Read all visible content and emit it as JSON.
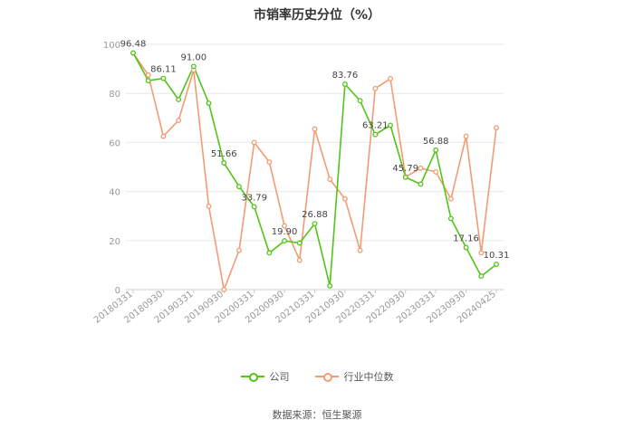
{
  "chart_data": {
    "type": "line",
    "title": "市销率历史分位（%）",
    "ylim": [
      0,
      100
    ],
    "yticks": [
      0,
      20,
      40,
      60,
      80,
      100
    ],
    "grid": true,
    "legend_position": "bottom",
    "x": [
      "20180331",
      "20180630",
      "20180930",
      "20181231",
      "20190331",
      "20190630",
      "20190930",
      "20191231",
      "20200331",
      "20200630",
      "20200930",
      "20201231",
      "20210331",
      "20210630",
      "20210930",
      "20211231",
      "20220331",
      "20220630",
      "20220930",
      "20221231",
      "20230331",
      "20230630",
      "20230930",
      "20231231",
      "20240425"
    ],
    "xtick_labels": [
      "20180331",
      "20180930",
      "20190331",
      "20190930",
      "20200331",
      "20200930",
      "20210331",
      "20210930",
      "20220331",
      "20220930",
      "20230331",
      "20230930",
      "20240425"
    ],
    "series": [
      {
        "name": "公司",
        "color": "#52c41a",
        "values": [
          96.48,
          85.2,
          86.11,
          77.5,
          91.0,
          76.0,
          51.66,
          42.0,
          33.79,
          15.0,
          19.9,
          19.0,
          26.88,
          1.5,
          83.76,
          77.0,
          63.21,
          67.0,
          45.79,
          43.0,
          56.88,
          29.0,
          17.16,
          5.5,
          10.31
        ],
        "labels": {
          "0": "96.48",
          "2": "86.11",
          "4": "91.00",
          "6": "51.66",
          "8": "33.79",
          "10": "19.90",
          "12": "26.88",
          "14": "83.76",
          "16": "63.21",
          "18": "45.79",
          "20": "56.88",
          "22": "17.16",
          "24": "10.31"
        }
      },
      {
        "name": "行业中位数",
        "color": "#f39c73",
        "values": [
          96.48,
          87.5,
          62.5,
          69.0,
          89.5,
          34.0,
          0.0,
          16.0,
          60.0,
          52.0,
          26.0,
          12.0,
          65.5,
          45.0,
          37.0,
          16.0,
          82.0,
          86.0,
          46.0,
          49.5,
          48.0,
          37.0,
          62.5,
          15.0,
          66.0
        ]
      }
    ]
  },
  "source": "数据来源：恒生聚源"
}
